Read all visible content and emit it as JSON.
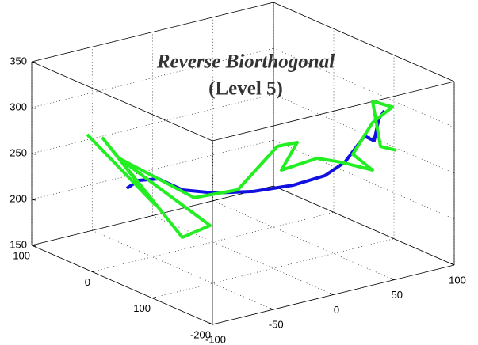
{
  "chart_data": {
    "type": "line3d",
    "title": "Reverse Biorthogonal",
    "subtitle": "(Level 5)",
    "xlim": [
      -100,
      100
    ],
    "xticks": [
      -100,
      -50,
      0,
      50,
      100
    ],
    "ylim": [
      -200,
      100
    ],
    "yticks": [
      -200,
      -100,
      0,
      100
    ],
    "zlim": [
      150,
      350
    ],
    "zticks": [
      150,
      200,
      250,
      300,
      350
    ],
    "grid": true,
    "series": [
      {
        "name": "blue",
        "color": "#1010e0",
        "x": [
          -53.7,
          -47.6,
          -37.4,
          -25.2,
          -9,
          11.3,
          31.7,
          47.9,
          58.1,
          64.2,
          68.3,
          73.1,
          75.6,
          78.4
        ],
        "y": [
          35,
          27.5,
          15,
          0,
          -20,
          -45,
          -70,
          -90,
          -102.5,
          -110,
          -115,
          -121,
          -124,
          -127.5
        ],
        "z": [
          215.8,
          224.6,
          226.6,
          214.9,
          212.1,
          214.4,
          221.8,
          232.7,
          247.6,
          265,
          276.4,
          271.4,
          295.5,
          304.3
        ]
      },
      {
        "name": "green",
        "color": "#22ee22",
        "x": [
          -74,
          -39.5,
          -65.9,
          -25.2,
          -11,
          -57.8,
          -19.1,
          3.2,
          23.5,
          33.7,
          25.6,
          43.9,
          56.1,
          72.3,
          62.2,
          72.3,
          82.5,
          72.3,
          76.4,
          84.5
        ],
        "y": [
          60,
          17.5,
          50,
          0,
          -17.5,
          40,
          -7.5,
          -35,
          -60,
          -72.5,
          -62.5,
          -85,
          -100,
          -120,
          -107.5,
          -120,
          -132.5,
          -120,
          -125,
          -135
        ],
        "z": [
          273.8,
          199,
          269.7,
          163.2,
          176.6,
          248.5,
          206.6,
          215.9,
          263.9,
          268.4,
          238,
          251.5,
          247.6,
          239.5,
          256.4,
          291.2,
          308.5,
          314.5,
          265.3,
          261.4
        ]
      }
    ]
  }
}
